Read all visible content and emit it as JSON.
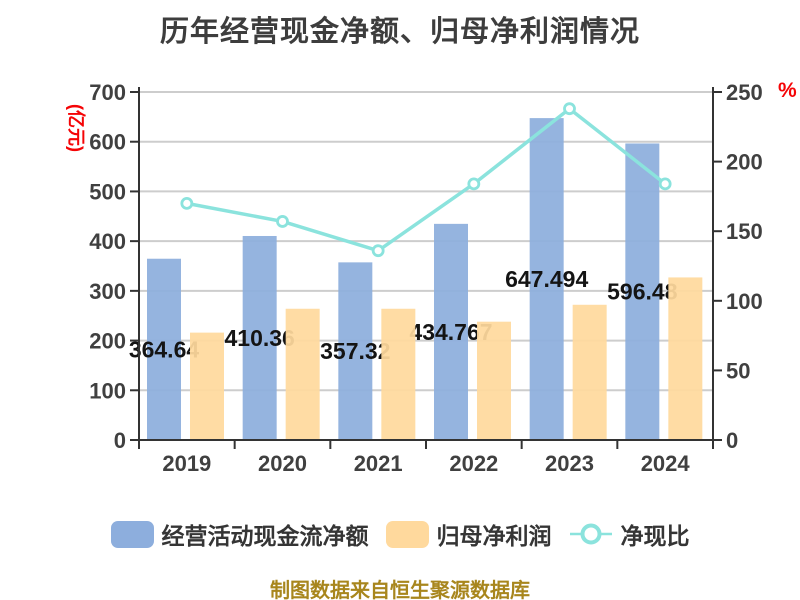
{
  "title": "历年经营现金净额、归母净利润情况",
  "footer": "制图数据来自恒生聚源数据库",
  "colors": {
    "bar_cash": "#8DAEDD",
    "bar_profit": "#FFD99D",
    "line_ratio": "#8BE3DD",
    "axis_line": "#333333",
    "grid": "#CDCDCD",
    "axis_text": "#404040",
    "value_label": "#141414",
    "unit_text": "#F50406",
    "title_text": "#3D3D3D",
    "footer_text": "#A8861D"
  },
  "legend": {
    "items": [
      {
        "label": "经营活动现金流净额",
        "type": "bar",
        "color": "#8DAEDD"
      },
      {
        "label": "归母净利润",
        "type": "bar",
        "color": "#FFD99D"
      },
      {
        "label": "净现比",
        "type": "line",
        "color": "#8BE3DD"
      }
    ]
  },
  "chart_data": {
    "type": "bar+line",
    "categories": [
      "2019",
      "2020",
      "2021",
      "2022",
      "2023",
      "2024"
    ],
    "series": [
      {
        "name": "经营活动现金流净额",
        "type": "bar",
        "axis": "left",
        "color": "#8DAEDD",
        "values": [
          364.64,
          410.36,
          357.32,
          434.767,
          647.494,
          596.48
        ],
        "data_labels": [
          "364.64",
          "410.36",
          "357.32",
          "434.767",
          "647.494",
          "596.48"
        ]
      },
      {
        "name": "归母净利润",
        "type": "bar",
        "axis": "left",
        "color": "#FFD99D",
        "values": [
          216,
          264,
          264,
          238,
          272,
          327
        ]
      },
      {
        "name": "净现比",
        "type": "line",
        "axis": "right",
        "color": "#8BE3DD",
        "values": [
          170,
          157,
          136,
          184,
          238,
          184
        ]
      }
    ],
    "left_axis": {
      "unit": "(亿元)",
      "min": 0,
      "max": 700,
      "step": 100
    },
    "right_axis": {
      "unit": "%",
      "min": 0,
      "max": 250,
      "step": 50
    },
    "grid": "horizontal",
    "legend_position": "bottom"
  }
}
